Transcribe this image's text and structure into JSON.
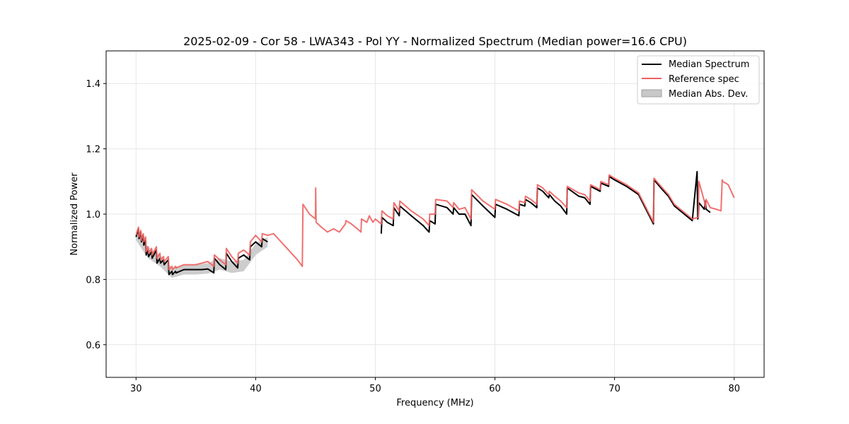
{
  "chart_data": {
    "type": "line",
    "title": "2025-02-09 - Cor 58 - LWA343 - Pol YY - Normalized Spectrum (Median power=16.6 CPU)",
    "xlabel": "Frequency (MHz)",
    "ylabel": "Normalized Power",
    "xlim": [
      27.5,
      82.5
    ],
    "ylim": [
      0.5,
      1.5
    ],
    "xticks": [
      30,
      40,
      50,
      60,
      70,
      80
    ],
    "xtick_labels": [
      "30",
      "40",
      "50",
      "60",
      "70",
      "80"
    ],
    "yticks": [
      0.6,
      0.8,
      1.0,
      1.2,
      1.4
    ],
    "ytick_labels": [
      "0.6",
      "0.8",
      "1.0",
      "1.2",
      "1.4"
    ],
    "grid": true,
    "legend_position": "top-right",
    "legend": [
      "Median Spectrum",
      "Reference spec",
      "Median Abs. Dev."
    ],
    "colors": {
      "median": "#000000",
      "reference": "#f06060",
      "mad": "#c8c8c8",
      "mad_edge": "#a0a0a0"
    },
    "series": [
      {
        "name": "Reference spec",
        "x": [
          30.0,
          30.2,
          30.25,
          30.4,
          30.45,
          30.6,
          30.65,
          30.8,
          30.85,
          31.0,
          31.05,
          31.3,
          31.35,
          31.7,
          31.75,
          32.0,
          32.05,
          32.3,
          32.35,
          32.7,
          32.75,
          33.0,
          33.05,
          33.3,
          33.35,
          34.0,
          34.5,
          35.0,
          35.5,
          36.0,
          36.5,
          36.55,
          37.0,
          37.5,
          37.55,
          38.0,
          38.5,
          38.55,
          39.0,
          39.5,
          39.55,
          40.0,
          40.5,
          40.55,
          41.0,
          41.5,
          42.0,
          42.5,
          43.0,
          43.5,
          43.9,
          43.95,
          44.5,
          45.0,
          45.02,
          45.05,
          45.5,
          46.0,
          46.5,
          47.0,
          47.5,
          47.55,
          48.0,
          48.5,
          48.8,
          48.85,
          49.3,
          49.5,
          49.8,
          50.0,
          50.5,
          50.55,
          51.0,
          51.5,
          51.55,
          52.0,
          52.05,
          53.0,
          54.0,
          54.5,
          54.55,
          55.0,
          55.05,
          56.0,
          56.5,
          56.55,
          57.0,
          57.5,
          58.0,
          58.05,
          59.0,
          60.0,
          60.05,
          61.0,
          62.0,
          62.05,
          62.5,
          62.55,
          63.0,
          63.5,
          63.55,
          64.0,
          64.5,
          64.55,
          65.0,
          65.5,
          66.0,
          66.05,
          67.0,
          67.5,
          67.95,
          68.0,
          68.8,
          68.85,
          69.5,
          69.55,
          70.0,
          71.0,
          72.0,
          73.25,
          73.3,
          74.0,
          74.5,
          75.0,
          75.5,
          76.0,
          76.5,
          77.0,
          77.05,
          77.5,
          77.6,
          77.65,
          78.0,
          78.5,
          78.9,
          79.0,
          79.05,
          79.5,
          80.0
        ],
        "y": [
          0.935,
          0.96,
          0.93,
          0.95,
          0.92,
          0.94,
          0.915,
          0.93,
          0.885,
          0.9,
          0.88,
          0.895,
          0.875,
          0.9,
          0.865,
          0.88,
          0.86,
          0.87,
          0.855,
          0.87,
          0.83,
          0.84,
          0.83,
          0.84,
          0.835,
          0.845,
          0.845,
          0.845,
          0.85,
          0.855,
          0.84,
          0.875,
          0.86,
          0.845,
          0.895,
          0.87,
          0.85,
          0.88,
          0.89,
          0.875,
          0.915,
          0.935,
          0.915,
          0.94,
          0.935,
          0.94,
          0.92,
          0.9,
          0.88,
          0.86,
          0.84,
          1.03,
          1.0,
          0.985,
          1.08,
          0.975,
          0.96,
          0.945,
          0.955,
          0.945,
          0.97,
          0.98,
          0.97,
          0.955,
          0.945,
          0.985,
          0.975,
          0.995,
          0.975,
          0.985,
          0.97,
          1.01,
          0.995,
          0.985,
          1.035,
          1.01,
          1.04,
          1.01,
          0.985,
          0.965,
          1.0,
          1.0,
          1.045,
          1.04,
          1.02,
          1.035,
          1.015,
          1.02,
          0.985,
          1.075,
          1.04,
          1.015,
          1.045,
          1.03,
          1.01,
          1.04,
          1.035,
          1.055,
          1.045,
          1.03,
          1.09,
          1.08,
          1.06,
          1.07,
          1.055,
          1.04,
          1.02,
          1.085,
          1.065,
          1.06,
          1.04,
          1.09,
          1.075,
          1.1,
          1.09,
          1.12,
          1.11,
          1.09,
          1.065,
          0.975,
          1.11,
          1.08,
          1.06,
          1.03,
          1.015,
          1.0,
          0.985,
          0.99,
          1.1,
          1.04,
          1.02,
          1.045,
          1.02,
          1.015,
          1.01,
          1.105,
          1.1,
          1.09,
          1.05
        ]
      },
      {
        "name": "Median Spectrum",
        "x": [
          30.0,
          30.2,
          30.25,
          30.4,
          30.45,
          30.6,
          30.65,
          30.8,
          30.85,
          31.0,
          31.05,
          31.3,
          31.35,
          31.7,
          31.75,
          32.0,
          32.05,
          32.3,
          32.35,
          32.7,
          32.75,
          33.0,
          33.05,
          33.3,
          33.35,
          34.0,
          34.5,
          35.0,
          35.5,
          36.0,
          36.5,
          36.55,
          37.0,
          37.5,
          37.55,
          38.0,
          38.5,
          38.55,
          39.0,
          39.5,
          39.55,
          40.0,
          40.5,
          40.55,
          41.0,
          41.05,
          41.5,
          50.45,
          50.5,
          50.55,
          51.0,
          51.5,
          51.55,
          52.0,
          52.05,
          53.0,
          54.0,
          54.5,
          54.55,
          55.0,
          55.05,
          56.0,
          56.5,
          56.55,
          57.0,
          57.5,
          58.0,
          58.05,
          59.0,
          60.0,
          60.05,
          61.0,
          62.0,
          62.05,
          62.5,
          62.55,
          63.0,
          63.5,
          63.55,
          64.0,
          64.5,
          64.55,
          65.0,
          65.5,
          66.0,
          66.05,
          67.0,
          67.5,
          67.95,
          68.0,
          68.8,
          68.85,
          69.5,
          69.55,
          70.0,
          71.0,
          72.0,
          73.25,
          73.3,
          74.0,
          74.5,
          75.0,
          75.5,
          76.0,
          76.5,
          76.9,
          76.95,
          77.0,
          77.05,
          77.5,
          77.6,
          77.65,
          78.0
        ],
        "y": [
          0.93,
          0.955,
          0.925,
          0.945,
          0.915,
          0.935,
          0.905,
          0.92,
          0.875,
          0.89,
          0.87,
          0.885,
          0.865,
          0.89,
          0.85,
          0.865,
          0.85,
          0.86,
          0.845,
          0.86,
          0.815,
          0.825,
          0.815,
          0.825,
          0.82,
          0.83,
          0.83,
          0.83,
          0.83,
          0.832,
          0.82,
          0.865,
          0.845,
          0.83,
          0.88,
          0.855,
          0.835,
          0.865,
          0.875,
          0.86,
          0.9,
          0.915,
          0.9,
          0.925,
          0.915,
          null,
          null,
          null,
          0.94,
          0.99,
          0.975,
          0.965,
          1.02,
          0.995,
          1.025,
          0.995,
          0.965,
          0.945,
          0.98,
          0.97,
          1.03,
          1.02,
          1.0,
          1.02,
          1.0,
          1.0,
          0.965,
          1.06,
          1.025,
          0.99,
          1.03,
          1.015,
          0.995,
          1.03,
          1.025,
          1.045,
          1.035,
          1.02,
          1.08,
          1.07,
          1.05,
          1.06,
          1.04,
          1.025,
          1.0,
          1.08,
          1.055,
          1.05,
          1.03,
          1.085,
          1.07,
          1.095,
          1.085,
          1.115,
          1.105,
          1.085,
          1.06,
          0.97,
          1.105,
          1.075,
          1.055,
          1.025,
          1.01,
          0.995,
          0.98,
          1.13,
          0.985,
          0.99,
          1.035,
          1.015,
          1.04,
          1.015,
          1.005
        ]
      }
    ],
    "mad_band": {
      "name": "Median Abs. Dev.",
      "x": [
        30.0,
        31.0,
        32.0,
        33.0,
        34.0,
        35.0,
        36.0,
        37.0,
        38.0,
        39.0,
        40.0,
        41.0
      ],
      "lower": [
        0.92,
        0.865,
        0.84,
        0.805,
        0.815,
        0.815,
        0.818,
        0.83,
        0.82,
        0.825,
        0.875,
        0.9
      ],
      "upper": [
        0.945,
        0.9,
        0.875,
        0.835,
        0.845,
        0.845,
        0.85,
        0.865,
        0.855,
        0.86,
        0.91,
        0.93
      ]
    }
  }
}
